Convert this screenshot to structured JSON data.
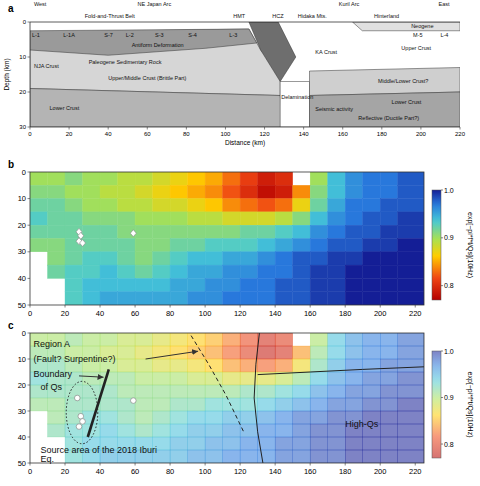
{
  "chart_data": [
    {
      "type": "cross_section",
      "panel": "a",
      "xlabel": "Distance (km)",
      "ylabel": "Depth (km)",
      "xlim": [
        0,
        220
      ],
      "ylim": [
        0,
        30
      ],
      "xticks": [
        0,
        20,
        40,
        60,
        80,
        100,
        120,
        140,
        160,
        180,
        200,
        220
      ],
      "yticks": [
        0,
        10,
        20,
        30
      ],
      "regions": [
        {
          "color": "#d6d6d6",
          "x": [
            0,
            112,
            118,
            128,
            128,
            0
          ],
          "y": [
            3,
            2,
            8,
            14,
            21,
            19
          ]
        },
        {
          "color": "#9a9a9a",
          "x": [
            0,
            112,
            116,
            90,
            40,
            0
          ],
          "y": [
            2.5,
            2,
            6,
            7.5,
            9.5,
            8
          ]
        },
        {
          "color": "#b4b4b4",
          "x": [
            0,
            128,
            130,
            0
          ],
          "y": [
            19,
            21,
            30,
            30
          ]
        },
        {
          "color": "#6e6e6e",
          "x": [
            112,
            127,
            136,
            128,
            118
          ],
          "y": [
            0,
            0,
            10,
            17,
            8
          ]
        },
        {
          "color": "#ffffff",
          "x": [
            128,
            143,
            143,
            128
          ],
          "y": [
            17,
            17,
            30,
            30
          ]
        },
        {
          "color": "#cfcfcf",
          "x": [
            143,
            220,
            220,
            143
          ],
          "y": [
            14,
            13,
            20,
            21
          ]
        },
        {
          "color": "#a5a5a5",
          "x": [
            143,
            220,
            220,
            143
          ],
          "y": [
            21,
            20,
            30,
            30
          ]
        },
        {
          "color": "#e0e0e0",
          "x": [
            165,
            220,
            220,
            170
          ],
          "y": [
            0,
            0,
            2.5,
            2.5
          ]
        }
      ],
      "annotations": [
        {
          "text": "West",
          "x": 2,
          "y": -4.5
        },
        {
          "text": "NE Japan Arc",
          "x": 55,
          "y": -4.5
        },
        {
          "text": "Kuril Arc",
          "x": 158,
          "y": -4.5
        },
        {
          "text": "East",
          "x": 209,
          "y": -4.5
        },
        {
          "text": "Fold-and-Thrust Belt",
          "x": 28,
          "y": -1.2
        },
        {
          "text": "HMT",
          "x": 104,
          "y": -1.2
        },
        {
          "text": "HCZ",
          "x": 124,
          "y": -1.2
        },
        {
          "text": "Hidaka Mts.",
          "x": 137,
          "y": -1.2
        },
        {
          "text": "Hinterland",
          "x": 176,
          "y": -1.2
        },
        {
          "text": "L-1",
          "x": 1,
          "y": 4.2
        },
        {
          "text": "L-1A",
          "x": 17,
          "y": 4.2
        },
        {
          "text": "S-7",
          "x": 38,
          "y": 4.2
        },
        {
          "text": "L-2",
          "x": 49,
          "y": 4.2
        },
        {
          "text": "S-3",
          "x": 64,
          "y": 4.2
        },
        {
          "text": "S-4",
          "x": 81,
          "y": 4.2
        },
        {
          "text": "L-3",
          "x": 102,
          "y": 4.2
        },
        {
          "text": "M-5",
          "x": 196,
          "y": 4.2
        },
        {
          "text": "L-4",
          "x": 210,
          "y": 4.2
        },
        {
          "text": "Antiform Deformation",
          "x": 52,
          "y": 7
        },
        {
          "text": "NJA Crust",
          "x": 2,
          "y": 13
        },
        {
          "text": "Paleogene Sedimentary Rock",
          "x": 30,
          "y": 12
        },
        {
          "text": "Upper/Middle Crust (Brittle Part)",
          "x": 40,
          "y": 16.5
        },
        {
          "text": "Lower Crust",
          "x": 10,
          "y": 25
        },
        {
          "text": "KA Crust",
          "x": 146,
          "y": 9
        },
        {
          "text": "Upper Crust",
          "x": 190,
          "y": 8
        },
        {
          "text": "Neogene",
          "x": 195,
          "y": 1.7
        },
        {
          "text": "Middle/Lower Crust?",
          "x": 178,
          "y": 17.5
        },
        {
          "text": "Lower Crust",
          "x": 185,
          "y": 23.5
        },
        {
          "text": "Delamination",
          "x": 128.5,
          "y": 22
        },
        {
          "text": "Seismic activity",
          "x": 146,
          "y": 25.3
        },
        {
          "text": "Reflective (Ductile Part?)",
          "x": 168,
          "y": 28
        }
      ]
    },
    {
      "type": "heatmap",
      "panel": "b",
      "xlim": [
        0,
        225
      ],
      "ylim": [
        0,
        50
      ],
      "xticks": [
        0,
        20,
        40,
        60,
        80,
        100,
        120,
        140,
        160,
        180,
        200,
        220
      ],
      "yticks": [
        0,
        10,
        20,
        30,
        40,
        50
      ],
      "x_edges": [
        0,
        10,
        20,
        30,
        40,
        50,
        60,
        70,
        80,
        90,
        100,
        110,
        120,
        130,
        140,
        150,
        160,
        170,
        180,
        190,
        200,
        210,
        225
      ],
      "y_edges": [
        0,
        5,
        10,
        15,
        20,
        25,
        30,
        35,
        40,
        45,
        50
      ],
      "cells": [
        [
          0.9,
          0.9,
          0.91,
          0.9,
          0.9,
          0.89,
          0.89,
          0.88,
          0.87,
          0.86,
          0.85,
          0.83,
          0.81,
          0.79,
          0.8,
          null,
          0.9,
          0.94,
          0.96,
          0.97,
          0.97,
          0.98
        ],
        [
          0.91,
          0.91,
          0.9,
          0.9,
          0.89,
          0.89,
          0.88,
          0.87,
          0.86,
          0.85,
          0.84,
          0.82,
          0.8,
          0.78,
          0.79,
          0.84,
          0.91,
          0.94,
          0.96,
          0.97,
          0.97,
          0.98
        ],
        [
          0.92,
          0.92,
          0.91,
          0.9,
          0.9,
          0.89,
          0.89,
          0.88,
          0.88,
          0.87,
          0.86,
          0.84,
          0.83,
          0.82,
          0.83,
          0.87,
          0.92,
          0.95,
          0.97,
          0.97,
          0.98,
          0.98
        ],
        [
          0.93,
          0.92,
          0.92,
          0.91,
          0.91,
          0.91,
          0.9,
          0.9,
          0.9,
          0.89,
          0.89,
          0.88,
          0.88,
          0.88,
          0.89,
          0.91,
          0.94,
          0.96,
          0.97,
          0.98,
          0.98,
          0.99
        ],
        [
          0.92,
          0.92,
          0.92,
          0.92,
          0.92,
          0.91,
          0.91,
          0.91,
          0.91,
          0.91,
          0.91,
          0.91,
          0.92,
          0.92,
          0.93,
          0.94,
          0.96,
          0.97,
          0.98,
          0.98,
          0.99,
          0.99
        ],
        [
          0.91,
          0.91,
          0.92,
          0.92,
          0.92,
          0.92,
          0.91,
          0.91,
          0.92,
          0.92,
          0.93,
          0.93,
          0.93,
          0.94,
          0.95,
          0.96,
          0.97,
          0.98,
          0.98,
          0.99,
          0.99,
          1.0
        ],
        [
          null,
          0.91,
          0.92,
          0.93,
          0.93,
          0.92,
          0.91,
          0.92,
          0.93,
          0.94,
          0.94,
          0.95,
          0.95,
          0.96,
          0.97,
          0.98,
          0.98,
          0.99,
          0.99,
          1.0,
          1.0,
          1.0
        ],
        [
          null,
          0.92,
          0.93,
          0.93,
          0.94,
          0.93,
          0.92,
          0.93,
          0.94,
          0.95,
          0.95,
          0.96,
          0.96,
          0.97,
          0.97,
          0.98,
          0.99,
          0.99,
          1.0,
          1.0,
          1.0,
          1.0
        ],
        [
          null,
          null,
          0.93,
          0.94,
          0.94,
          0.94,
          0.94,
          0.94,
          0.95,
          0.95,
          0.96,
          0.96,
          0.97,
          0.97,
          0.98,
          0.98,
          0.99,
          0.99,
          1.0,
          1.0,
          1.0,
          1.0
        ],
        [
          null,
          null,
          0.93,
          0.94,
          0.95,
          0.95,
          0.95,
          0.95,
          0.95,
          0.96,
          0.96,
          0.97,
          0.97,
          0.97,
          0.98,
          0.98,
          0.99,
          0.99,
          1.0,
          1.0,
          1.0,
          1.0
        ]
      ],
      "colorbar": {
        "range": [
          0.77,
          1.0
        ],
        "ticks": [
          0.8,
          0.9,
          {
            "value": 1.0,
            "label": "1.0"
          }
        ],
        "label": "exp[−pi*f*t/Qs](10Hz)"
      },
      "points": {
        "x": [
          28,
          29,
          28,
          30,
          59
        ],
        "y": [
          22.5,
          24,
          26,
          26.7,
          23
        ]
      },
      "marker": "diamond"
    },
    {
      "type": "heatmap",
      "panel": "c",
      "xlim": [
        0,
        225
      ],
      "ylim": [
        0,
        50
      ],
      "xticks": [
        0,
        20,
        40,
        60,
        80,
        100,
        120,
        140,
        160,
        180,
        200,
        220
      ],
      "yticks": [
        0,
        10,
        20,
        30,
        40,
        50
      ],
      "x_edges": [
        0,
        10,
        20,
        30,
        40,
        50,
        60,
        70,
        80,
        90,
        100,
        110,
        120,
        130,
        140,
        150,
        160,
        170,
        180,
        190,
        200,
        210,
        225
      ],
      "y_edges": [
        0,
        5,
        10,
        15,
        20,
        25,
        30,
        35,
        40,
        45,
        50
      ],
      "cells": [
        [
          0.9,
          0.9,
          0.91,
          0.9,
          0.9,
          0.89,
          0.89,
          0.88,
          0.87,
          0.86,
          0.85,
          0.83,
          0.81,
          0.79,
          0.8,
          null,
          0.9,
          0.94,
          0.96,
          0.97,
          0.97,
          0.98
        ],
        [
          0.91,
          0.91,
          0.9,
          0.9,
          0.89,
          0.89,
          0.88,
          0.87,
          0.86,
          0.85,
          0.84,
          0.82,
          0.8,
          0.78,
          0.79,
          0.84,
          0.91,
          0.94,
          0.96,
          0.97,
          0.97,
          0.98
        ],
        [
          0.92,
          0.92,
          0.91,
          0.9,
          0.9,
          0.89,
          0.89,
          0.88,
          0.88,
          0.87,
          0.86,
          0.84,
          0.83,
          0.82,
          0.83,
          0.87,
          0.92,
          0.95,
          0.97,
          0.97,
          0.98,
          0.98
        ],
        [
          0.93,
          0.92,
          0.92,
          0.91,
          0.91,
          0.91,
          0.9,
          0.9,
          0.9,
          0.89,
          0.89,
          0.88,
          0.88,
          0.88,
          0.89,
          0.91,
          0.94,
          0.96,
          0.97,
          0.98,
          0.98,
          0.99
        ],
        [
          0.92,
          0.92,
          0.92,
          0.92,
          0.92,
          0.91,
          0.91,
          0.91,
          0.91,
          0.91,
          0.91,
          0.91,
          0.92,
          0.92,
          0.93,
          0.94,
          0.96,
          0.97,
          0.98,
          0.98,
          0.99,
          0.99
        ],
        [
          0.91,
          0.91,
          0.92,
          0.92,
          0.92,
          0.92,
          0.91,
          0.91,
          0.92,
          0.92,
          0.93,
          0.93,
          0.93,
          0.94,
          0.95,
          0.96,
          0.97,
          0.98,
          0.98,
          0.99,
          0.99,
          1.0
        ],
        [
          null,
          0.91,
          0.92,
          0.93,
          0.93,
          0.92,
          0.91,
          0.92,
          0.93,
          0.94,
          0.94,
          0.95,
          0.95,
          0.96,
          0.97,
          0.98,
          0.98,
          0.99,
          0.99,
          1.0,
          1.0,
          1.0
        ],
        [
          null,
          0.92,
          0.93,
          0.93,
          0.94,
          0.93,
          0.92,
          0.93,
          0.94,
          0.95,
          0.95,
          0.96,
          0.96,
          0.97,
          0.97,
          0.98,
          0.99,
          0.99,
          1.0,
          1.0,
          1.0,
          1.0
        ],
        [
          null,
          null,
          0.93,
          0.94,
          0.94,
          0.94,
          0.94,
          0.94,
          0.95,
          0.95,
          0.96,
          0.96,
          0.97,
          0.97,
          0.98,
          0.98,
          0.99,
          0.99,
          1.0,
          1.0,
          1.0,
          1.0
        ],
        [
          null,
          null,
          0.93,
          0.94,
          0.95,
          0.95,
          0.95,
          0.95,
          0.95,
          0.96,
          0.96,
          0.97,
          0.97,
          0.97,
          0.98,
          0.98,
          0.99,
          0.99,
          1.0,
          1.0,
          1.0,
          1.0
        ]
      ],
      "colorbar": {
        "range": [
          0.77,
          1.0
        ],
        "ticks": [
          0.8,
          0.9,
          {
            "value": 1.0,
            "label": "1.0"
          }
        ],
        "label": "exp[−pi*f*t/Qs](10Hz)"
      },
      "points": {
        "x": [
          27,
          29,
          30,
          28,
          59
        ],
        "y": [
          25,
          32,
          34,
          36,
          26
        ]
      },
      "marker": "circle",
      "lines": [
        {
          "x": [
            45,
            33
          ],
          "y": [
            14,
            40
          ],
          "line_style": "bold"
        },
        {
          "x": [
            92,
            102,
            112,
            122
          ],
          "y": [
            1,
            12,
            24,
            38
          ],
          "line_style": "dashed"
        },
        {
          "x": [
            131,
            129,
            128,
            130,
            133
          ],
          "y": [
            0,
            12,
            25,
            38,
            50
          ],
          "line_style": "solid"
        },
        {
          "x": [
            130,
            160,
            190,
            225
          ],
          "y": [
            16,
            15,
            14,
            13
          ],
          "line_style": "solid"
        },
        {
          "x": [
            28,
            42
          ],
          "y": [
            16.5,
            17
          ],
          "line_style": "solid",
          "marker": "arrow"
        },
        {
          "x": [
            66,
            96
          ],
          "y": [
            10,
            7
          ],
          "line_style": "solid",
          "marker": "arrow"
        }
      ],
      "ellipses": [
        {
          "x": 29.7,
          "y": 30.6,
          "rx": 9,
          "ry": 12,
          "line_style": "dotted"
        }
      ],
      "annotations": [
        {
          "text": "Region A",
          "x": 2,
          "y": 5.5
        },
        {
          "text": "(Fault? Surpentine?)",
          "x": 2,
          "y": 11
        },
        {
          "text": "Boundary",
          "x": 2,
          "y": 17
        },
        {
          "text": "of Qs",
          "x": 6,
          "y": 22
        },
        {
          "text": "Source area of the 2018 Iburi",
          "x": 6,
          "y": 46
        },
        {
          "text": "Eq.",
          "x": 6,
          "y": 49.5
        },
        {
          "text": "High-Qs",
          "x": 180,
          "y": 36
        }
      ]
    }
  ]
}
